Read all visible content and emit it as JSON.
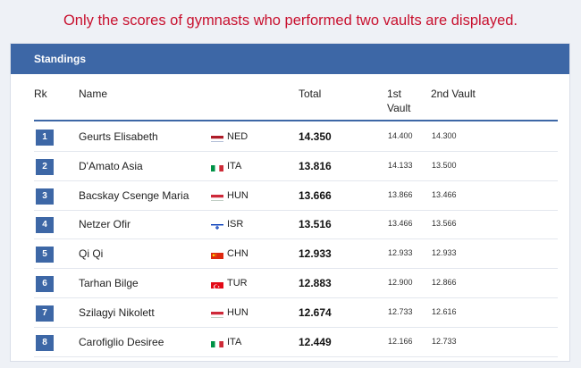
{
  "notice": "Only the scores of gymnasts who performed two vaults are displayed.",
  "standings": {
    "title": "Standings",
    "headers": {
      "rank": "Rk",
      "name": "Name",
      "total": "Total",
      "first_vault": "1st\nVault",
      "second_vault": "2nd Vault"
    },
    "rows": [
      {
        "rank": "1",
        "name": "Geurts Elisabeth",
        "noc": "NED",
        "flag": "netherlands-flag-icon",
        "total": "14.350",
        "v1": "14.400",
        "v2": "14.300"
      },
      {
        "rank": "2",
        "name": "D'Amato Asia",
        "noc": "ITA",
        "flag": "italy-flag-icon",
        "total": "13.816",
        "v1": "14.133",
        "v2": "13.500"
      },
      {
        "rank": "3",
        "name": "Bacskay Csenge Maria",
        "noc": "HUN",
        "flag": "hungary-flag-icon",
        "total": "13.666",
        "v1": "13.866",
        "v2": "13.466"
      },
      {
        "rank": "4",
        "name": "Netzer Ofir",
        "noc": "ISR",
        "flag": "israel-flag-icon",
        "total": "13.516",
        "v1": "13.466",
        "v2": "13.566"
      },
      {
        "rank": "5",
        "name": "Qi Qi",
        "noc": "CHN",
        "flag": "china-flag-icon",
        "total": "12.933",
        "v1": "12.933",
        "v2": "12.933"
      },
      {
        "rank": "6",
        "name": "Tarhan Bilge",
        "noc": "TUR",
        "flag": "turkey-flag-icon",
        "total": "12.883",
        "v1": "12.900",
        "v2": "12.866"
      },
      {
        "rank": "7",
        "name": "Szilagyi Nikolett",
        "noc": "HUN",
        "flag": "hungary-flag-icon",
        "total": "12.674",
        "v1": "12.733",
        "v2": "12.616"
      },
      {
        "rank": "8",
        "name": "Carofiglio Desiree",
        "noc": "ITA",
        "flag": "italy-flag-icon",
        "total": "12.449",
        "v1": "12.166",
        "v2": "12.733"
      }
    ]
  },
  "colors": {
    "header_bg": "#3d67a6",
    "notice": "#c8102e",
    "rank_badge": "#3d67a6"
  }
}
